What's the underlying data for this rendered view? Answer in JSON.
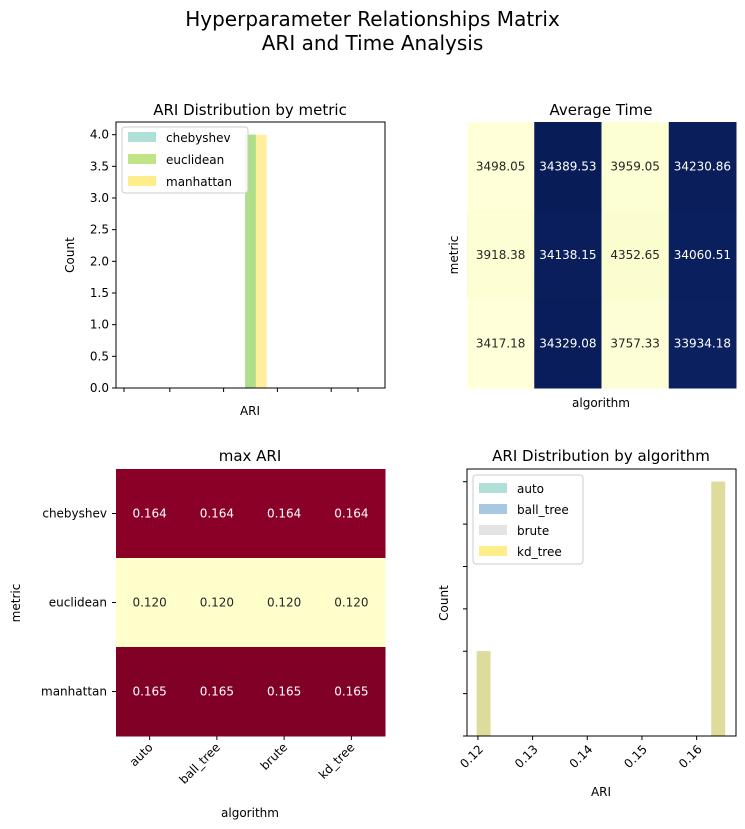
{
  "suptitle": [
    "Hyperparameter Relationships Matrix",
    "ARI and Time Analysis"
  ],
  "chart_data": [
    {
      "type": "bar",
      "title": "ARI Distribution by metric",
      "xlabel": "ARI",
      "ylabel": "Count",
      "ylim": [
        0,
        4.2
      ],
      "xlim": [
        0.1,
        0.2
      ],
      "yticks": [
        0.0,
        0.5,
        1.0,
        1.5,
        2.0,
        2.5,
        3.0,
        3.5,
        4.0
      ],
      "legend_position": "top-left",
      "series": [
        {
          "name": "chebyshev",
          "color": "#8dd3c7",
          "bins": [
            {
              "x0": 0.148,
              "x1": 0.152,
              "count": 4
            }
          ]
        },
        {
          "name": "euclidean",
          "color": "#a6d854",
          "bins": [
            {
              "x0": 0.148,
              "x1": 0.152,
              "count": 4
            }
          ]
        },
        {
          "name": "manhattan",
          "color": "#ffe45a",
          "bins": [
            {
              "x0": 0.152,
              "x1": 0.156,
              "count": 4
            }
          ]
        }
      ]
    },
    {
      "type": "heatmap",
      "title": "Average Time",
      "xlabel": "algorithm",
      "ylabel": "metric",
      "columns": [
        "auto",
        "ball_tree",
        "brute",
        "kd_tree"
      ],
      "rows": [
        "chebyshev",
        "euclidean",
        "manhattan"
      ],
      "values": [
        [
          "3498.05",
          "34389.53",
          "3959.05",
          "34230.86"
        ],
        [
          "3918.38",
          "34138.15",
          "4352.65",
          "34060.51"
        ],
        [
          "3417.18",
          "34329.08",
          "3757.33",
          "33934.18"
        ]
      ],
      "colormap": "YlGnBu"
    },
    {
      "type": "heatmap",
      "title": "max ARI",
      "xlabel": "algorithm",
      "ylabel": "metric",
      "columns": [
        "auto",
        "ball_tree",
        "brute",
        "kd_tree"
      ],
      "rows": [
        "chebyshev",
        "euclidean",
        "manhattan"
      ],
      "values": [
        [
          "0.164",
          "0.164",
          "0.164",
          "0.164"
        ],
        [
          "0.120",
          "0.120",
          "0.120",
          "0.120"
        ],
        [
          "0.165",
          "0.165",
          "0.165",
          "0.165"
        ]
      ],
      "colormap": "YlOrRd"
    },
    {
      "type": "bar",
      "title": "ARI Distribution by algorithm",
      "xlabel": "ARI",
      "ylabel": "Count",
      "xlim": [
        0.118,
        0.1672
      ],
      "ylim": [
        0,
        3.15
      ],
      "xticks": [
        "0.12",
        "0.13",
        "0.14",
        "0.15",
        "0.16"
      ],
      "legend_position": "top-left",
      "series": [
        {
          "name": "auto",
          "color": "#8dd3c7",
          "bins": [
            {
              "x0": 0.1198,
              "x1": 0.1223,
              "count": 1
            },
            {
              "x0": 0.1627,
              "x1": 0.1652,
              "count": 3
            }
          ]
        },
        {
          "name": "ball_tree",
          "color": "#80b1d3",
          "bins": [
            {
              "x0": 0.1198,
              "x1": 0.1223,
              "count": 1
            },
            {
              "x0": 0.1627,
              "x1": 0.1652,
              "count": 3
            }
          ]
        },
        {
          "name": "brute",
          "color": "#d9d9d9",
          "bins": [
            {
              "x0": 0.1198,
              "x1": 0.1223,
              "count": 1
            },
            {
              "x0": 0.1627,
              "x1": 0.1652,
              "count": 3
            }
          ]
        },
        {
          "name": "kd_tree",
          "color": "#ffe45a",
          "bins": [
            {
              "x0": 0.1198,
              "x1": 0.1223,
              "count": 1
            },
            {
              "x0": 0.1627,
              "x1": 0.1652,
              "count": 3
            }
          ]
        }
      ]
    }
  ]
}
